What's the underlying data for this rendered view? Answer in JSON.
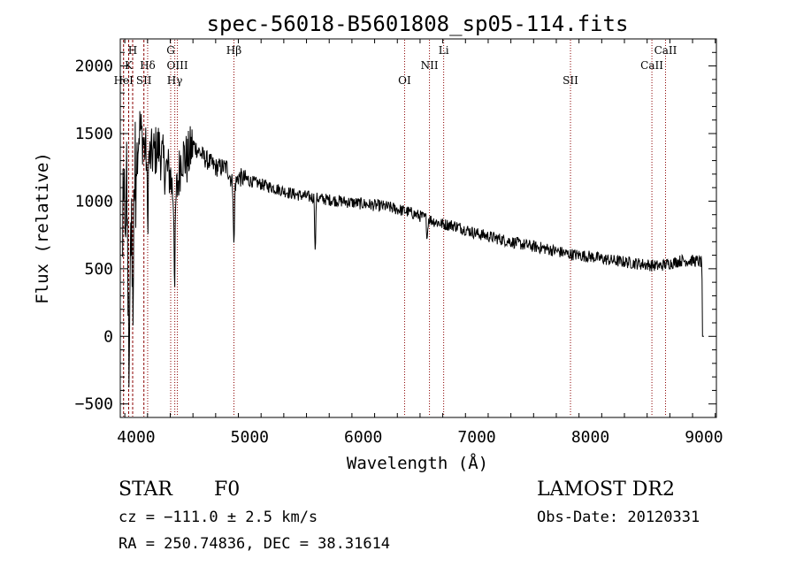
{
  "chart_data": {
    "type": "line",
    "title": "spec-56018-B5601808_sp05-114.fits",
    "xlabel": "Wavelength (Å)",
    "ylabel": "Flux (relative)",
    "xlim": [
      3860,
      9110
    ],
    "ylim": [
      -600,
      2200
    ],
    "xticks": [
      4000,
      5000,
      6000,
      7000,
      8000,
      9000
    ],
    "xtick_labels": [
      "4000",
      "5000",
      "6000",
      "7000",
      "8000",
      "9000"
    ],
    "yticks": [
      -500,
      0,
      500,
      1000,
      1500,
      2000
    ],
    "ytick_labels": [
      "−500",
      "0",
      "500",
      "1000",
      "1500",
      "2000"
    ],
    "grid": false,
    "spectrum_anchors": {
      "x": [
        3880,
        3900,
        3920,
        3940,
        3960,
        3980,
        4000,
        4030,
        4060,
        4100,
        4150,
        4200,
        4250,
        4300,
        4340,
        4400,
        4450,
        4500,
        4600,
        4700,
        4800,
        4861,
        4900,
        5000,
        5200,
        5400,
        5600,
        5800,
        6000,
        6200,
        6400,
        6563,
        6700,
        6800,
        7000,
        7200,
        7400,
        7600,
        7800,
        8000,
        8200,
        8400,
        8600,
        8700,
        8800,
        8900,
        8980,
        9000
      ],
      "y": [
        700,
        900,
        1000,
        500,
        800,
        1100,
        1300,
        1550,
        1450,
        1300,
        1350,
        1400,
        1250,
        1200,
        950,
        1350,
        1300,
        1420,
        1320,
        1250,
        1250,
        1100,
        1180,
        1150,
        1100,
        1050,
        1020,
        1000,
        980,
        960,
        920,
        870,
        830,
        820,
        760,
        720,
        680,
        650,
        610,
        590,
        560,
        540,
        520,
        540,
        560,
        560,
        550,
        0
      ],
      "dips": [
        {
          "x": 3934,
          "depth": 1100
        },
        {
          "x": 3969,
          "depth": 900
        },
        {
          "x": 4101,
          "depth": 500
        },
        {
          "x": 4340,
          "depth": 600
        },
        {
          "x": 4861,
          "depth": 500
        },
        {
          "x": 5577,
          "depth": 450
        },
        {
          "x": 6563,
          "depth": 150
        }
      ],
      "noise_amplitude": 45
    },
    "lines": [
      {
        "label": "K",
        "x": 3934,
        "row": 1,
        "style": "dashed"
      },
      {
        "label": "HeI",
        "x": 3889,
        "row": 2,
        "style": "dashed"
      },
      {
        "label": "H",
        "x": 3969,
        "row": 0,
        "style": "dashed"
      },
      {
        "label": "SII",
        "x": 4068,
        "row": 2,
        "style": "dashed"
      },
      {
        "label": "Hδ",
        "x": 4101,
        "row": 1,
        "style": "dotted"
      },
      {
        "label": "G",
        "x": 4304,
        "row": 0,
        "style": "dotted"
      },
      {
        "label": "Hγ",
        "x": 4340,
        "row": 2,
        "style": "dotted"
      },
      {
        "label": "OIII",
        "x": 4363,
        "row": 1,
        "style": "dotted"
      },
      {
        "label": "Hβ",
        "x": 4861,
        "row": 0,
        "style": "dotted"
      },
      {
        "label": "OI",
        "x": 6364,
        "row": 2,
        "style": "dotted"
      },
      {
        "label": "NII",
        "x": 6583,
        "row": 1,
        "style": "dotted"
      },
      {
        "label": "Li",
        "x": 6708,
        "row": 0,
        "style": "dotted"
      },
      {
        "label": "SII",
        "x": 7825,
        "row": 2,
        "style": "dotted"
      },
      {
        "label": "CaII",
        "x": 8542,
        "row": 1,
        "style": "dotted"
      },
      {
        "label": "CaII",
        "x": 8662,
        "row": 0,
        "style": "dotted"
      }
    ]
  },
  "info": {
    "object_class": "STAR",
    "subclass": "F0",
    "survey": "LAMOST DR2",
    "redshift_text": "cz = −111.0 ± 2.5 km/s",
    "obs_date_text": "Obs-Date: 20120331",
    "coords_text": "RA = 250.74836, DEC =  38.31614"
  },
  "colors": {
    "spectrum": "#000000",
    "line_marker": "#8b0000",
    "axis": "#000000"
  }
}
